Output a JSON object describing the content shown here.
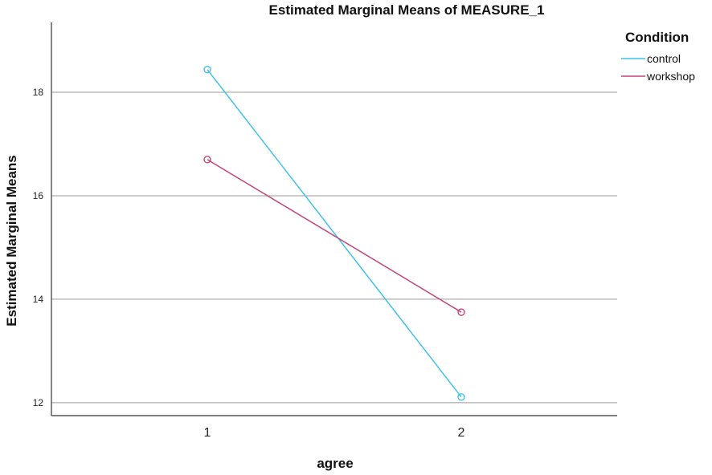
{
  "chart_data": {
    "type": "line",
    "title": "Estimated Marginal Means of MEASURE_1",
    "xlabel": "agree",
    "ylabel": "Estimated Marginal Means",
    "categories": [
      "1",
      "2"
    ],
    "ylim": [
      11.75,
      19.35
    ],
    "yticks": [
      12,
      14,
      16,
      18
    ],
    "grid": "horizontal",
    "legend": {
      "title": "Condition",
      "placement": "top-right"
    },
    "series": [
      {
        "name": "control",
        "color": "#3ec1ec",
        "values": [
          18.44,
          12.11
        ]
      },
      {
        "name": "workshop",
        "color": "#c4447a",
        "values": [
          16.7,
          13.75
        ]
      }
    ]
  }
}
